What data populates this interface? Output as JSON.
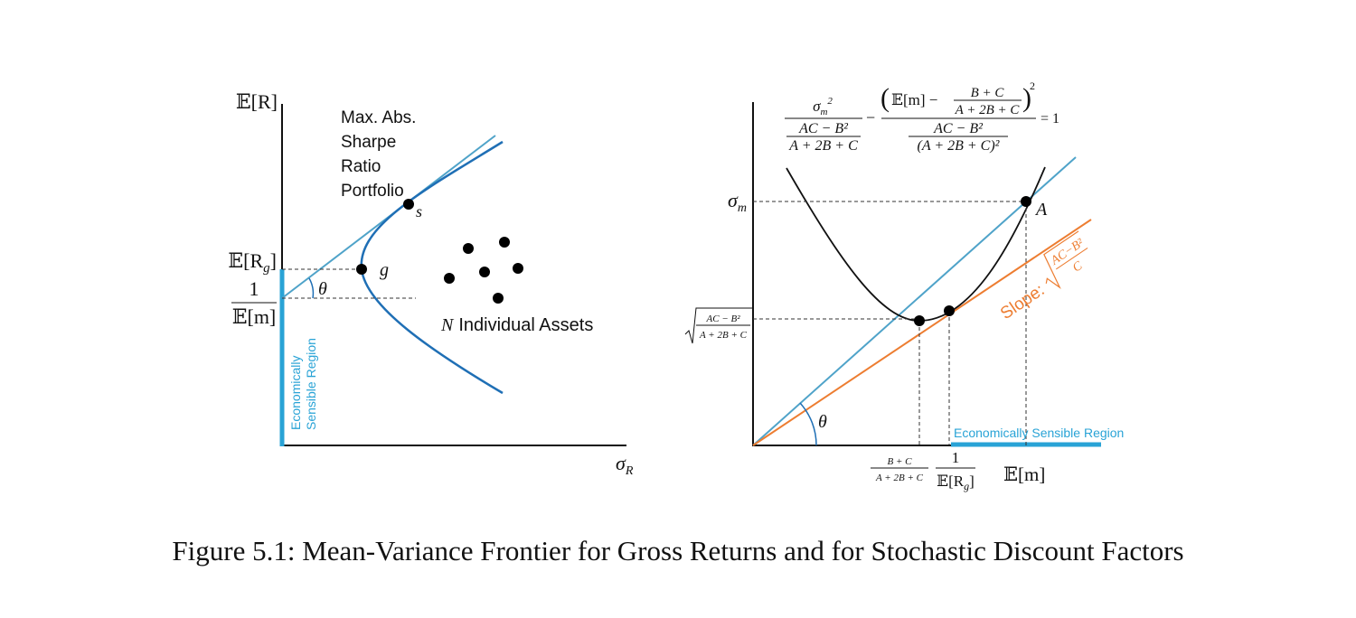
{
  "left": {
    "y_axis_label": "𝔼[R]",
    "portfolio_label": [
      "Max. Abs.",
      "Sharpe",
      "Ratio",
      "Portfolio"
    ],
    "point_s": "s",
    "point_g": "g",
    "expected_rg": {
      "main": "𝔼[R",
      "sub": "g",
      "close": "]"
    },
    "inverse_em": {
      "numerator": "1",
      "denominator": "𝔼[m]"
    },
    "theta": "θ",
    "assets_label": {
      "symbol": "N",
      "text": "Individual Assets"
    },
    "region_label": [
      "Economically",
      "Sensible Region"
    ],
    "x_axis_label": {
      "main": "σ",
      "sub": "R"
    }
  },
  "right": {
    "equation": {
      "sigma": "σ",
      "sigma_sub": "m",
      "sigma_sup": "2",
      "den1_num": "AC − B²",
      "den1_den": "A + 2B + C",
      "minus": "−",
      "open": "(",
      "em": "𝔼[m] −",
      "frac_num": "B + C",
      "frac_den": "A + 2B + C",
      "close": ")",
      "power": "2",
      "den2_num": "AC − B²",
      "den2_den": "(A + 2B + C)²",
      "equals": "= 1"
    },
    "sigma_m": {
      "main": "σ",
      "sub": "m"
    },
    "point_a": "A",
    "min_sd_label": {
      "numerator": "AC − B²",
      "denominator": "A + 2B + C"
    },
    "theta": "θ",
    "slope_label": {
      "text": "Slope:",
      "numerator": "AC−B²",
      "denominator": "C"
    },
    "x_label_1": {
      "numerator": "B + C",
      "denominator": "A + 2B + C"
    },
    "x_label_2": {
      "numerator": "1",
      "denominator": {
        "main": "𝔼[R",
        "sub": "g",
        "close": "]"
      }
    },
    "x_axis_label": "𝔼[m]",
    "region_label": "Economically Sensible Region"
  },
  "caption": "Figure 5.1: Mean-Variance Frontier for Gross Returns and for Stochastic Discount Factors"
}
